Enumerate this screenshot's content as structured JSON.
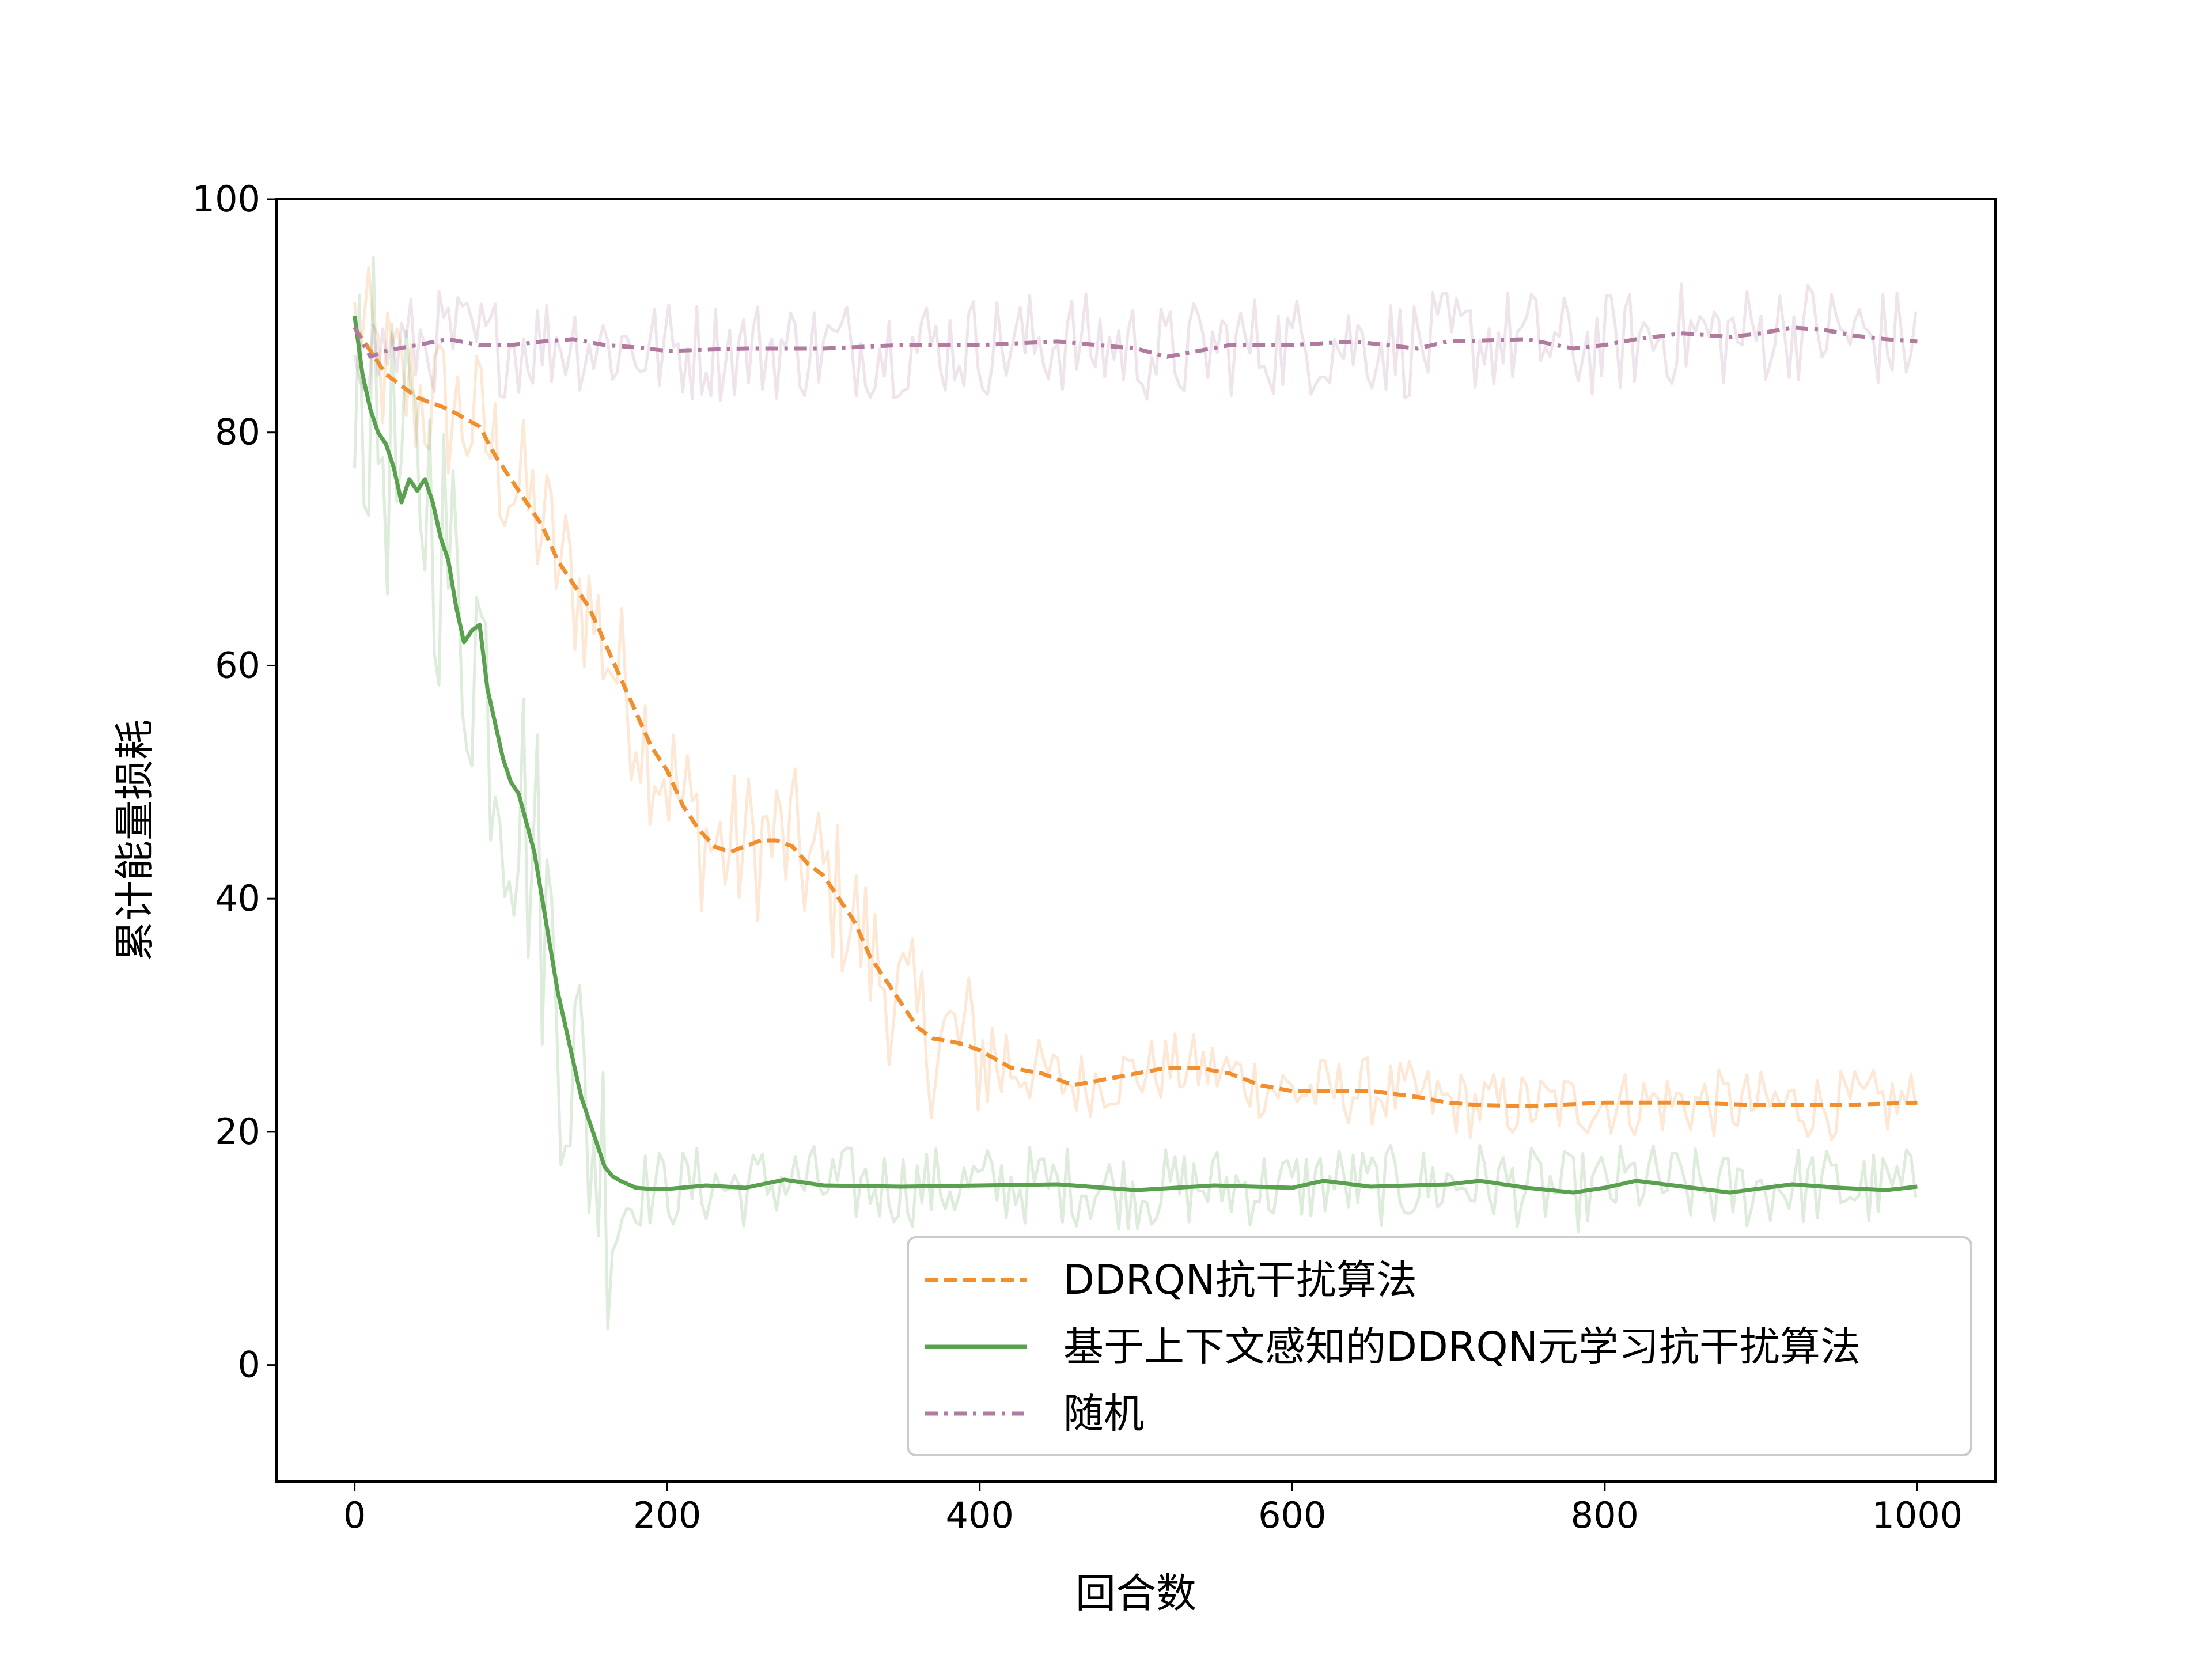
{
  "chart_data": {
    "type": "line",
    "title": "",
    "xlabel": "回合数",
    "ylabel": "累计能量损耗",
    "xlim": [
      -50,
      1050
    ],
    "ylim": [
      -10,
      100
    ],
    "xticks": [
      0,
      200,
      400,
      600,
      800,
      1000
    ],
    "yticks": [
      0,
      20,
      40,
      60,
      80,
      100
    ],
    "grid": false,
    "legend_position": "lower-right",
    "series": [
      {
        "name": "DDRQN抗干扰算法",
        "color": "#f28e2b",
        "linestyle": "dashed",
        "x": [
          0,
          10,
          20,
          40,
          60,
          80,
          90,
          100,
          120,
          130,
          140,
          150,
          160,
          170,
          180,
          190,
          200,
          210,
          220,
          230,
          240,
          250,
          260,
          270,
          280,
          290,
          300,
          310,
          320,
          330,
          340,
          350,
          360,
          370,
          380,
          390,
          400,
          420,
          440,
          460,
          480,
          500,
          520,
          540,
          560,
          580,
          600,
          620,
          650,
          680,
          700,
          720,
          750,
          800,
          850,
          900,
          950,
          1000
        ],
        "y": [
          89,
          87,
          85,
          83,
          82,
          80.5,
          78,
          76,
          72,
          69,
          67,
          65,
          62,
          59,
          56,
          53,
          51,
          48,
          46,
          44.5,
          44,
          44.5,
          45,
          45,
          44.5,
          43,
          42,
          40,
          38,
          35,
          33,
          31,
          29,
          28,
          27.8,
          27.5,
          27,
          25.5,
          25,
          24,
          24.5,
          25,
          25.5,
          25.5,
          25,
          24,
          23.5,
          23.5,
          23.5,
          23,
          22.5,
          22.3,
          22.2,
          22.5,
          22.5,
          22.3,
          22.3,
          22.5
        ]
      },
      {
        "name": "基于上下文感知的DDRQN元学习抗干扰算法",
        "color": "#59a14f",
        "linestyle": "solid",
        "x": [
          0,
          5,
          10,
          15,
          20,
          25,
          30,
          35,
          40,
          45,
          50,
          55,
          60,
          65,
          70,
          75,
          80,
          85,
          90,
          95,
          100,
          105,
          110,
          115,
          120,
          125,
          130,
          135,
          140,
          145,
          150,
          155,
          160,
          165,
          170,
          175,
          180,
          190,
          200,
          225,
          250,
          275,
          300,
          350,
          400,
          450,
          500,
          550,
          600,
          620,
          650,
          700,
          720,
          750,
          780,
          800,
          820,
          850,
          880,
          920,
          950,
          980,
          1000
        ],
        "y": [
          90,
          85,
          82,
          80,
          79,
          77,
          74,
          76,
          75,
          76,
          74,
          71,
          69,
          65,
          62,
          63,
          63.5,
          58,
          55,
          52,
          50,
          49,
          46.5,
          44,
          40,
          36,
          32,
          29,
          26,
          23,
          21,
          19,
          17,
          16.2,
          15.8,
          15.5,
          15.2,
          15.1,
          15.1,
          15.4,
          15.2,
          15.9,
          15.4,
          15.3,
          15.4,
          15.5,
          15,
          15.4,
          15.2,
          15.8,
          15.3,
          15.5,
          15.8,
          15.2,
          14.8,
          15.2,
          15.8,
          15.3,
          14.8,
          15.5,
          15.2,
          15,
          15.3
        ]
      },
      {
        "name": "随机",
        "color": "#b07aa1",
        "linestyle": "dashdot",
        "x": [
          0,
          10,
          20,
          40,
          60,
          80,
          100,
          120,
          140,
          160,
          180,
          200,
          250,
          300,
          350,
          400,
          450,
          500,
          520,
          540,
          560,
          600,
          640,
          680,
          700,
          750,
          780,
          800,
          820,
          850,
          880,
          900,
          920,
          940,
          960,
          980,
          1000
        ],
        "y": [
          89,
          86.5,
          87,
          87.5,
          88,
          87.5,
          87.5,
          87.8,
          88,
          87.5,
          87.3,
          87,
          87.2,
          87.2,
          87.5,
          87.5,
          87.8,
          87.2,
          86.5,
          87,
          87.5,
          87.5,
          87.8,
          87.2,
          87.8,
          88,
          87.2,
          87.5,
          88,
          88.5,
          88.2,
          88.5,
          89,
          88.8,
          88.3,
          88,
          87.8
        ]
      }
    ]
  }
}
